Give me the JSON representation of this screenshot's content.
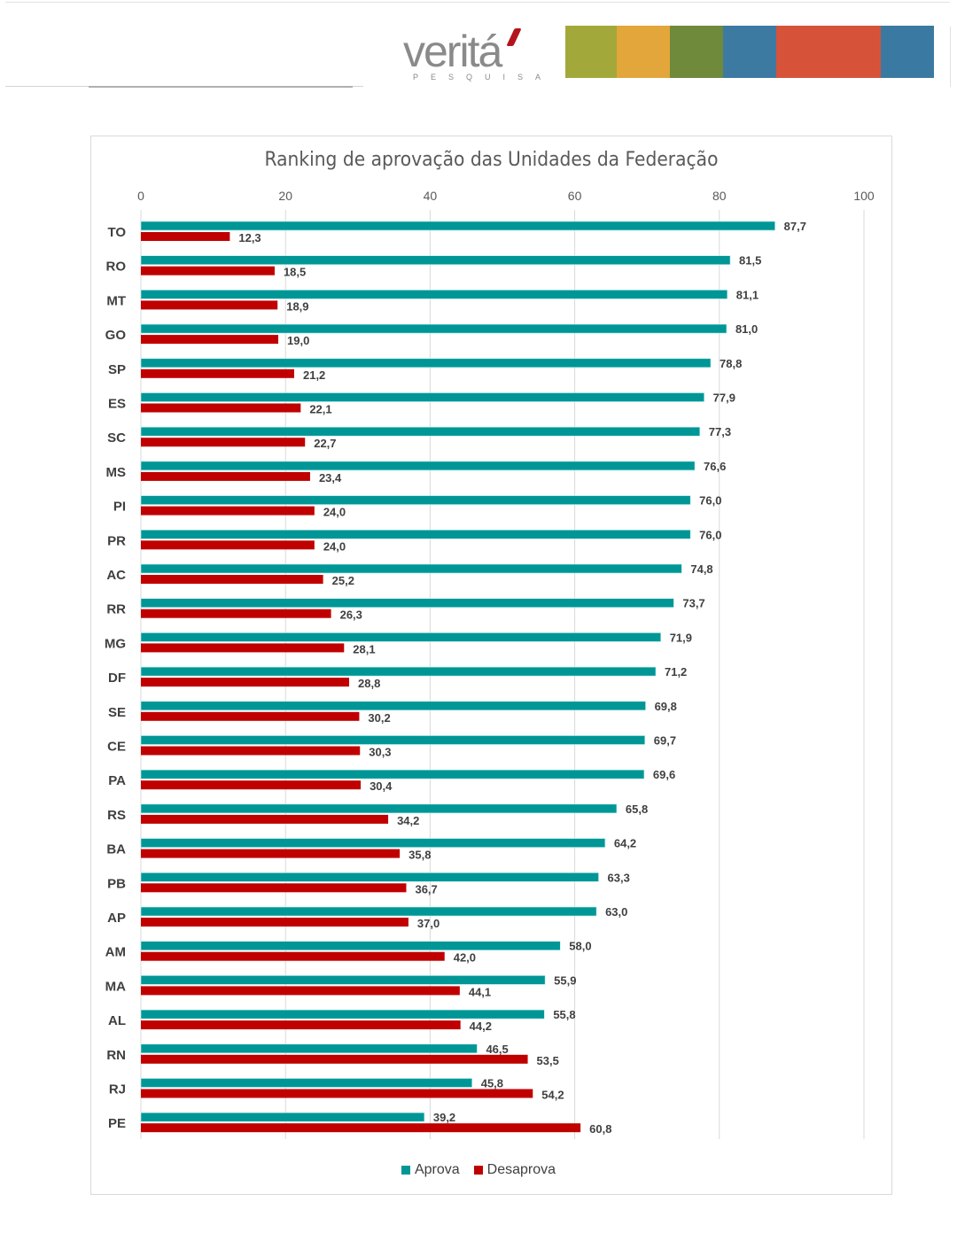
{
  "header": {
    "logo_text": "veritá",
    "logo_subtext": "PESQUISA",
    "banner_colors": [
      "#a2a93a",
      "#e2a63a",
      "#6e8a3a",
      "#3d7aa2",
      "#d6533a",
      "#d6533a",
      "#3a7aa2"
    ]
  },
  "colors": {
    "aprova": "#009696",
    "desaprova": "#c00000",
    "gridline": "#d9d9d9",
    "label_text": "#404040",
    "tick_text": "#595959"
  },
  "chart_data": {
    "type": "bar",
    "orientation": "horizontal",
    "title": "Ranking de aprovação das Unidades da Federação",
    "xlabel": "",
    "ylabel": "",
    "xlim": [
      0,
      100
    ],
    "x_ticks": [
      "0",
      "20",
      "40",
      "60",
      "80",
      "100"
    ],
    "grid": true,
    "legend_position": "bottom",
    "categories": [
      "TO",
      "RO",
      "MT",
      "GO",
      "SP",
      "ES",
      "SC",
      "MS",
      "PI",
      "PR",
      "AC",
      "RR",
      "MG",
      "DF",
      "SE",
      "CE",
      "PA",
      "RS",
      "BA",
      "PB",
      "AP",
      "AM",
      "MA",
      "AL",
      "RN",
      "RJ",
      "PE"
    ],
    "series": [
      {
        "name": "Aprova",
        "values": [
          87.7,
          81.5,
          81.1,
          81.0,
          78.8,
          77.9,
          77.3,
          76.6,
          76.0,
          76.0,
          74.8,
          73.7,
          71.9,
          71.2,
          69.8,
          69.7,
          69.6,
          65.8,
          64.2,
          63.3,
          63.0,
          58.0,
          55.9,
          55.8,
          46.5,
          45.8,
          39.2
        ],
        "labels": [
          "87,7",
          "81,5",
          "81,1",
          "81,0",
          "78,8",
          "77,9",
          "77,3",
          "76,6",
          "76,0",
          "76,0",
          "74,8",
          "73,7",
          "71,9",
          "71,2",
          "69,8",
          "69,7",
          "69,6",
          "65,8",
          "64,2",
          "63,3",
          "63,0",
          "58,0",
          "55,9",
          "55,8",
          "46,5",
          "45,8",
          "39,2"
        ]
      },
      {
        "name": "Desaprova",
        "values": [
          12.3,
          18.5,
          18.9,
          19.0,
          21.2,
          22.1,
          22.7,
          23.4,
          24.0,
          24.0,
          25.2,
          26.3,
          28.1,
          28.8,
          30.2,
          30.3,
          30.4,
          34.2,
          35.8,
          36.7,
          37.0,
          42.0,
          44.1,
          44.2,
          53.5,
          54.2,
          60.8
        ],
        "labels": [
          "12,3",
          "18,5",
          "18,9",
          "19,0",
          "21,2",
          "22,1",
          "22,7",
          "23,4",
          "24,0",
          "24,0",
          "25,2",
          "26,3",
          "28,1",
          "28,8",
          "30,2",
          "30,3",
          "30,4",
          "34,2",
          "35,8",
          "36,7",
          "37,0",
          "42,0",
          "44,1",
          "44,2",
          "53,5",
          "54,2",
          "60,8"
        ]
      }
    ]
  }
}
